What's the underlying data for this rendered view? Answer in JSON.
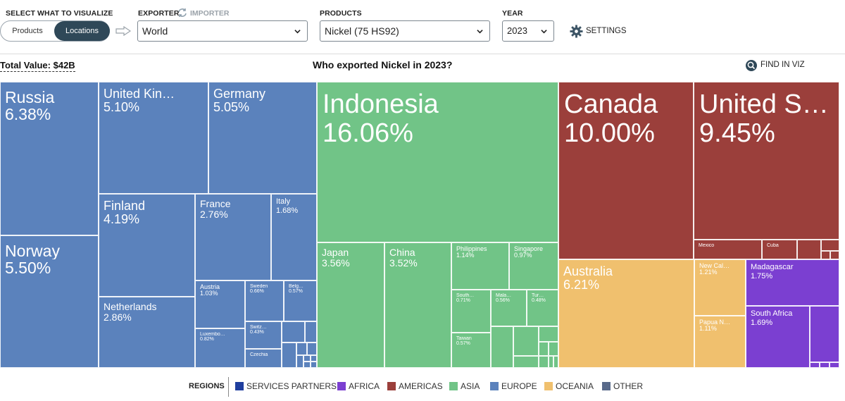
{
  "controls": {
    "select_label": "SELECT WHAT TO VISUALIZE",
    "toggle": {
      "products": "Products",
      "locations": "Locations",
      "selected": "Locations"
    },
    "exporter_label": "EXPORTER",
    "importer_label": "IMPORTER",
    "exporter_value": "World",
    "products_label": "PRODUCTS",
    "products_value": "Nickel (75 HS92)",
    "year_label": "YEAR",
    "year_value": "2023",
    "settings_label": "SETTINGS"
  },
  "summary": {
    "total_value": "Total Value: $42B",
    "title": "Who exported Nickel in 2023?",
    "find_label": "FIND IN VIZ"
  },
  "treemap": {
    "cells": [
      {
        "name": "Russia",
        "value": "6.38%",
        "region": "europe"
      },
      {
        "name": "Norway",
        "value": "5.50%",
        "region": "europe"
      },
      {
        "name": "United Kin…",
        "value": "5.10%",
        "region": "europe"
      },
      {
        "name": "Germany",
        "value": "5.05%",
        "region": "europe"
      },
      {
        "name": "Finland",
        "value": "4.19%",
        "region": "europe"
      },
      {
        "name": "France",
        "value": "2.76%",
        "region": "europe"
      },
      {
        "name": "Italy",
        "value": "1.68%",
        "region": "europe"
      },
      {
        "name": "Netherlands",
        "value": "2.86%",
        "region": "europe"
      },
      {
        "name": "Austria",
        "value": "1.03%",
        "region": "europe"
      },
      {
        "name": "Sweden",
        "value": "0.66%",
        "region": "europe"
      },
      {
        "name": "Belg…",
        "value": "0.57%",
        "region": "europe"
      },
      {
        "name": "Luxembo…",
        "value": "0.82%",
        "region": "europe"
      },
      {
        "name": "Switz…",
        "value": "0.43%",
        "region": "europe"
      },
      {
        "name": "Czechia",
        "value": "",
        "region": "europe"
      },
      {
        "name": "Indonesia",
        "value": "16.06%",
        "region": "asia"
      },
      {
        "name": "Japan",
        "value": "3.56%",
        "region": "asia"
      },
      {
        "name": "China",
        "value": "3.52%",
        "region": "asia"
      },
      {
        "name": "Philippines",
        "value": "1.14%",
        "region": "asia"
      },
      {
        "name": "Singapore",
        "value": "0.97%",
        "region": "asia"
      },
      {
        "name": "South…",
        "value": "0.71%",
        "region": "asia"
      },
      {
        "name": "Mala…",
        "value": "0.56%",
        "region": "asia"
      },
      {
        "name": "Tur…",
        "value": "0.48%",
        "region": "asia"
      },
      {
        "name": "Taiwan",
        "value": "0.57%",
        "region": "asia"
      },
      {
        "name": "Canada",
        "value": "10.00%",
        "region": "americas"
      },
      {
        "name": "United S…",
        "value": "9.45%",
        "region": "americas"
      },
      {
        "name": "Mexico",
        "value": "",
        "region": "americas"
      },
      {
        "name": "Cuba",
        "value": "",
        "region": "americas"
      },
      {
        "name": "Australia",
        "value": "6.21%",
        "region": "oceania"
      },
      {
        "name": "New Cal…",
        "value": "1.21%",
        "region": "oceania"
      },
      {
        "name": "Papua N…",
        "value": "1.11%",
        "region": "oceania"
      },
      {
        "name": "Madagascar",
        "value": "1.75%",
        "region": "africa"
      },
      {
        "name": "South Africa",
        "value": "1.69%",
        "region": "africa"
      }
    ]
  },
  "legend": {
    "title": "REGIONS",
    "items": [
      {
        "label": "SERVICES PARTNERS",
        "color": "#1f3e9e"
      },
      {
        "label": "AFRICA",
        "color": "#7b3fd1"
      },
      {
        "label": "AMERICAS",
        "color": "#9b3f3b"
      },
      {
        "label": "ASIA",
        "color": "#71c487"
      },
      {
        "label": "EUROPE",
        "color": "#5b82bc"
      },
      {
        "label": "OCEANIA",
        "color": "#f0c06e"
      },
      {
        "label": "OTHER",
        "color": "#596a8a"
      }
    ]
  },
  "colors": {
    "europe": "#5b82bc",
    "asia": "#71c487",
    "americas": "#9b3f3b",
    "oceania": "#f0c06e",
    "africa": "#7b3fd1",
    "toggle_active": "#2f4858"
  }
}
